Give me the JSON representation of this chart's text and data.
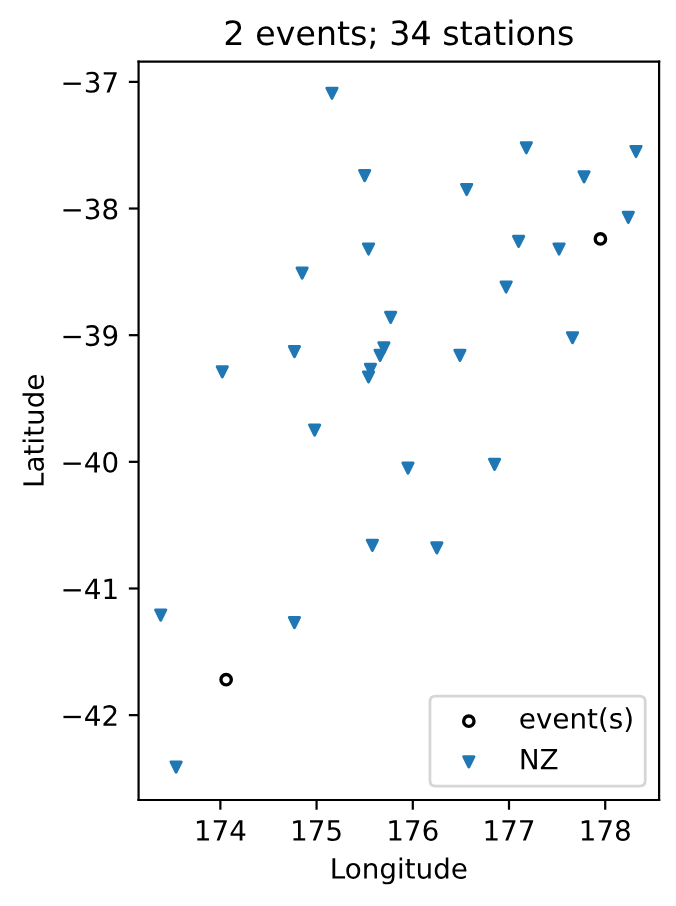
{
  "chart_data": {
    "type": "scatter",
    "title": "2 events; 34 stations",
    "xlabel": "Longitude",
    "ylabel": "Latitude",
    "xlim": [
      173.15,
      178.56
    ],
    "ylim": [
      -42.67,
      -36.84
    ],
    "xticks": [
      174,
      175,
      176,
      177,
      178
    ],
    "yticks": [
      -42,
      -41,
      -40,
      -39,
      -38,
      -37
    ],
    "grid": false,
    "legend": "bottom right",
    "series": [
      {
        "name": "event(s)",
        "color": "#000000",
        "marker": "circle",
        "x": [
          177.95,
          174.06
        ],
        "values": [
          -38.24,
          -41.72
        ]
      },
      {
        "name": "NZ",
        "color": "#1f77b4",
        "marker": "triangle",
        "x": [
          175.16,
          177.18,
          178.32,
          175.5,
          177.78,
          176.56,
          178.24,
          177.1,
          177.52,
          175.54,
          174.85,
          176.97,
          175.77,
          177.66,
          174.77,
          175.7,
          175.66,
          176.49,
          174.02,
          175.56,
          175.54,
          174.98,
          175.95,
          176.85,
          175.58,
          176.25,
          173.38,
          174.77,
          173.54
        ],
        "values": [
          -37.09,
          -37.52,
          -37.55,
          -37.74,
          -37.75,
          -37.85,
          -38.07,
          -38.26,
          -38.32,
          -38.32,
          -38.51,
          -38.62,
          -38.86,
          -39.02,
          -39.13,
          -39.1,
          -39.16,
          -39.16,
          -39.29,
          -39.27,
          -39.33,
          -39.75,
          -40.05,
          -40.02,
          -40.66,
          -40.68,
          -41.21,
          -41.27,
          -42.41
        ]
      }
    ]
  }
}
